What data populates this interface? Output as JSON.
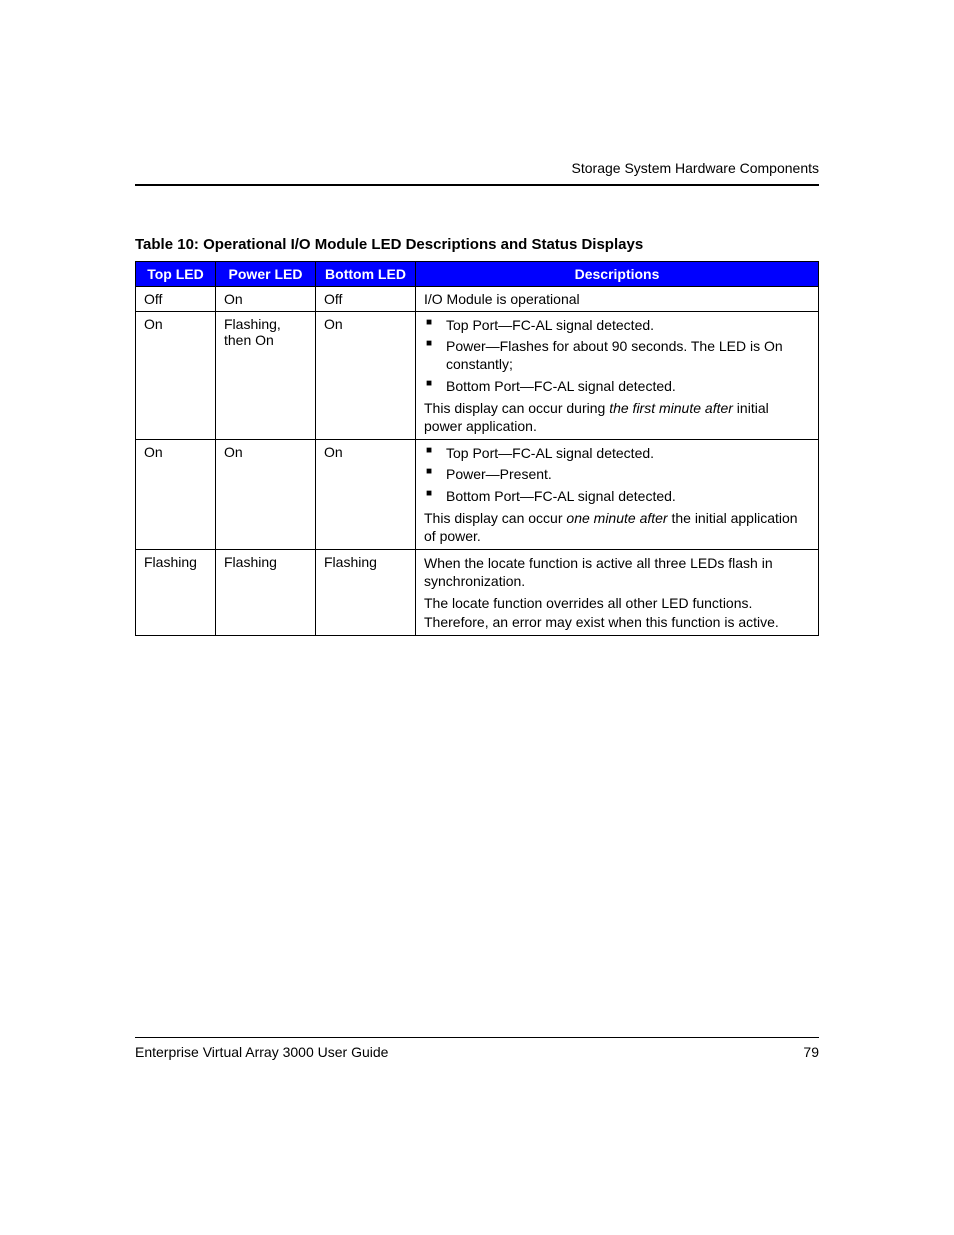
{
  "header": {
    "section_title": "Storage System Hardware Components"
  },
  "table": {
    "caption": "Table 10:  Operational I/O Module LED Descriptions and Status Displays",
    "columns": {
      "top_led": "Top LED",
      "power_led": "Power LED",
      "bottom_led": "Bottom LED",
      "descriptions": "Descriptions"
    },
    "header_bg_color": "#0000ff",
    "header_text_color": "#ffffff",
    "border_color": "#000000",
    "rows": [
      {
        "top": "Off",
        "power": "On",
        "bottom": "Off",
        "desc_simple": "I/O Module is operational"
      },
      {
        "top": "On",
        "power": "Flashing, then On",
        "bottom": "On",
        "bullets": [
          "Top Port—FC-AL signal detected.",
          "Power—Flashes for about 90 seconds. The LED is On constantly;",
          "Bottom Port—FC-AL signal detected."
        ],
        "trailing_pre": "This display can occur during ",
        "trailing_italic": "the first minute after",
        "trailing_post": " initial power application."
      },
      {
        "top": "On",
        "power": "On",
        "bottom": "On",
        "bullets": [
          "Top Port—FC-AL signal detected.",
          "Power—Present.",
          "Bottom Port—FC-AL signal detected."
        ],
        "trailing_pre": "This display can occur ",
        "trailing_italic": "one minute after",
        "trailing_post": " the initial application of power."
      },
      {
        "top": "Flashing",
        "power": "Flashing",
        "bottom": "Flashing",
        "para1": "When the locate function is active all three LEDs flash in synchronization.",
        "para2": "The locate function overrides all other LED functions. Therefore, an error may exist when this function is active."
      }
    ]
  },
  "footer": {
    "guide_title": "Enterprise Virtual Array 3000 User Guide",
    "page_number": "79"
  },
  "colors": {
    "page_bg": "#ffffff",
    "text": "#000000",
    "rule": "#000000"
  }
}
